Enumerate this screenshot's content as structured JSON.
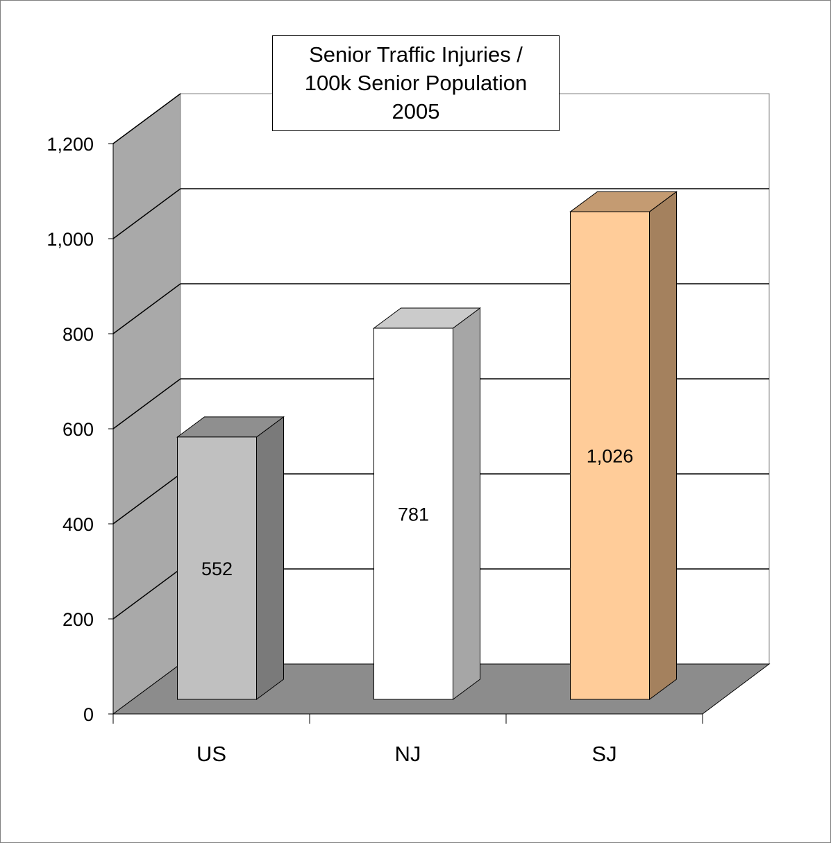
{
  "chart_data": {
    "type": "bar",
    "title": [
      "Senior Traffic Injuries /",
      "100k Senior Population",
      "2005"
    ],
    "categories": [
      "US",
      "NJ",
      "SJ"
    ],
    "values": [
      552,
      781,
      1026
    ],
    "value_labels": [
      "552",
      "781",
      "1,026"
    ],
    "ylim": [
      0,
      1200
    ],
    "yticks": [
      0,
      200,
      400,
      600,
      800,
      1000,
      1200
    ],
    "ytick_labels": [
      "0",
      "200",
      "400",
      "600",
      "800",
      "1,000",
      "1,200"
    ],
    "xlabel": "",
    "ylabel": "",
    "grid": true,
    "legend": "none",
    "style": "3d-column",
    "colors": {
      "bars_front": [
        "#c0c0c0",
        "#ffffff",
        "#ffcc99"
      ],
      "bars_side": [
        "#7a7a7a",
        "#a6a6a6",
        "#a4815e"
      ],
      "bars_top": [
        "#8f8f8f",
        "#cbcbcb",
        "#c49b72"
      ],
      "back_wall": "#ffffff",
      "side_wall": "#a9a9a9",
      "floor": "#8c8c8c"
    }
  }
}
